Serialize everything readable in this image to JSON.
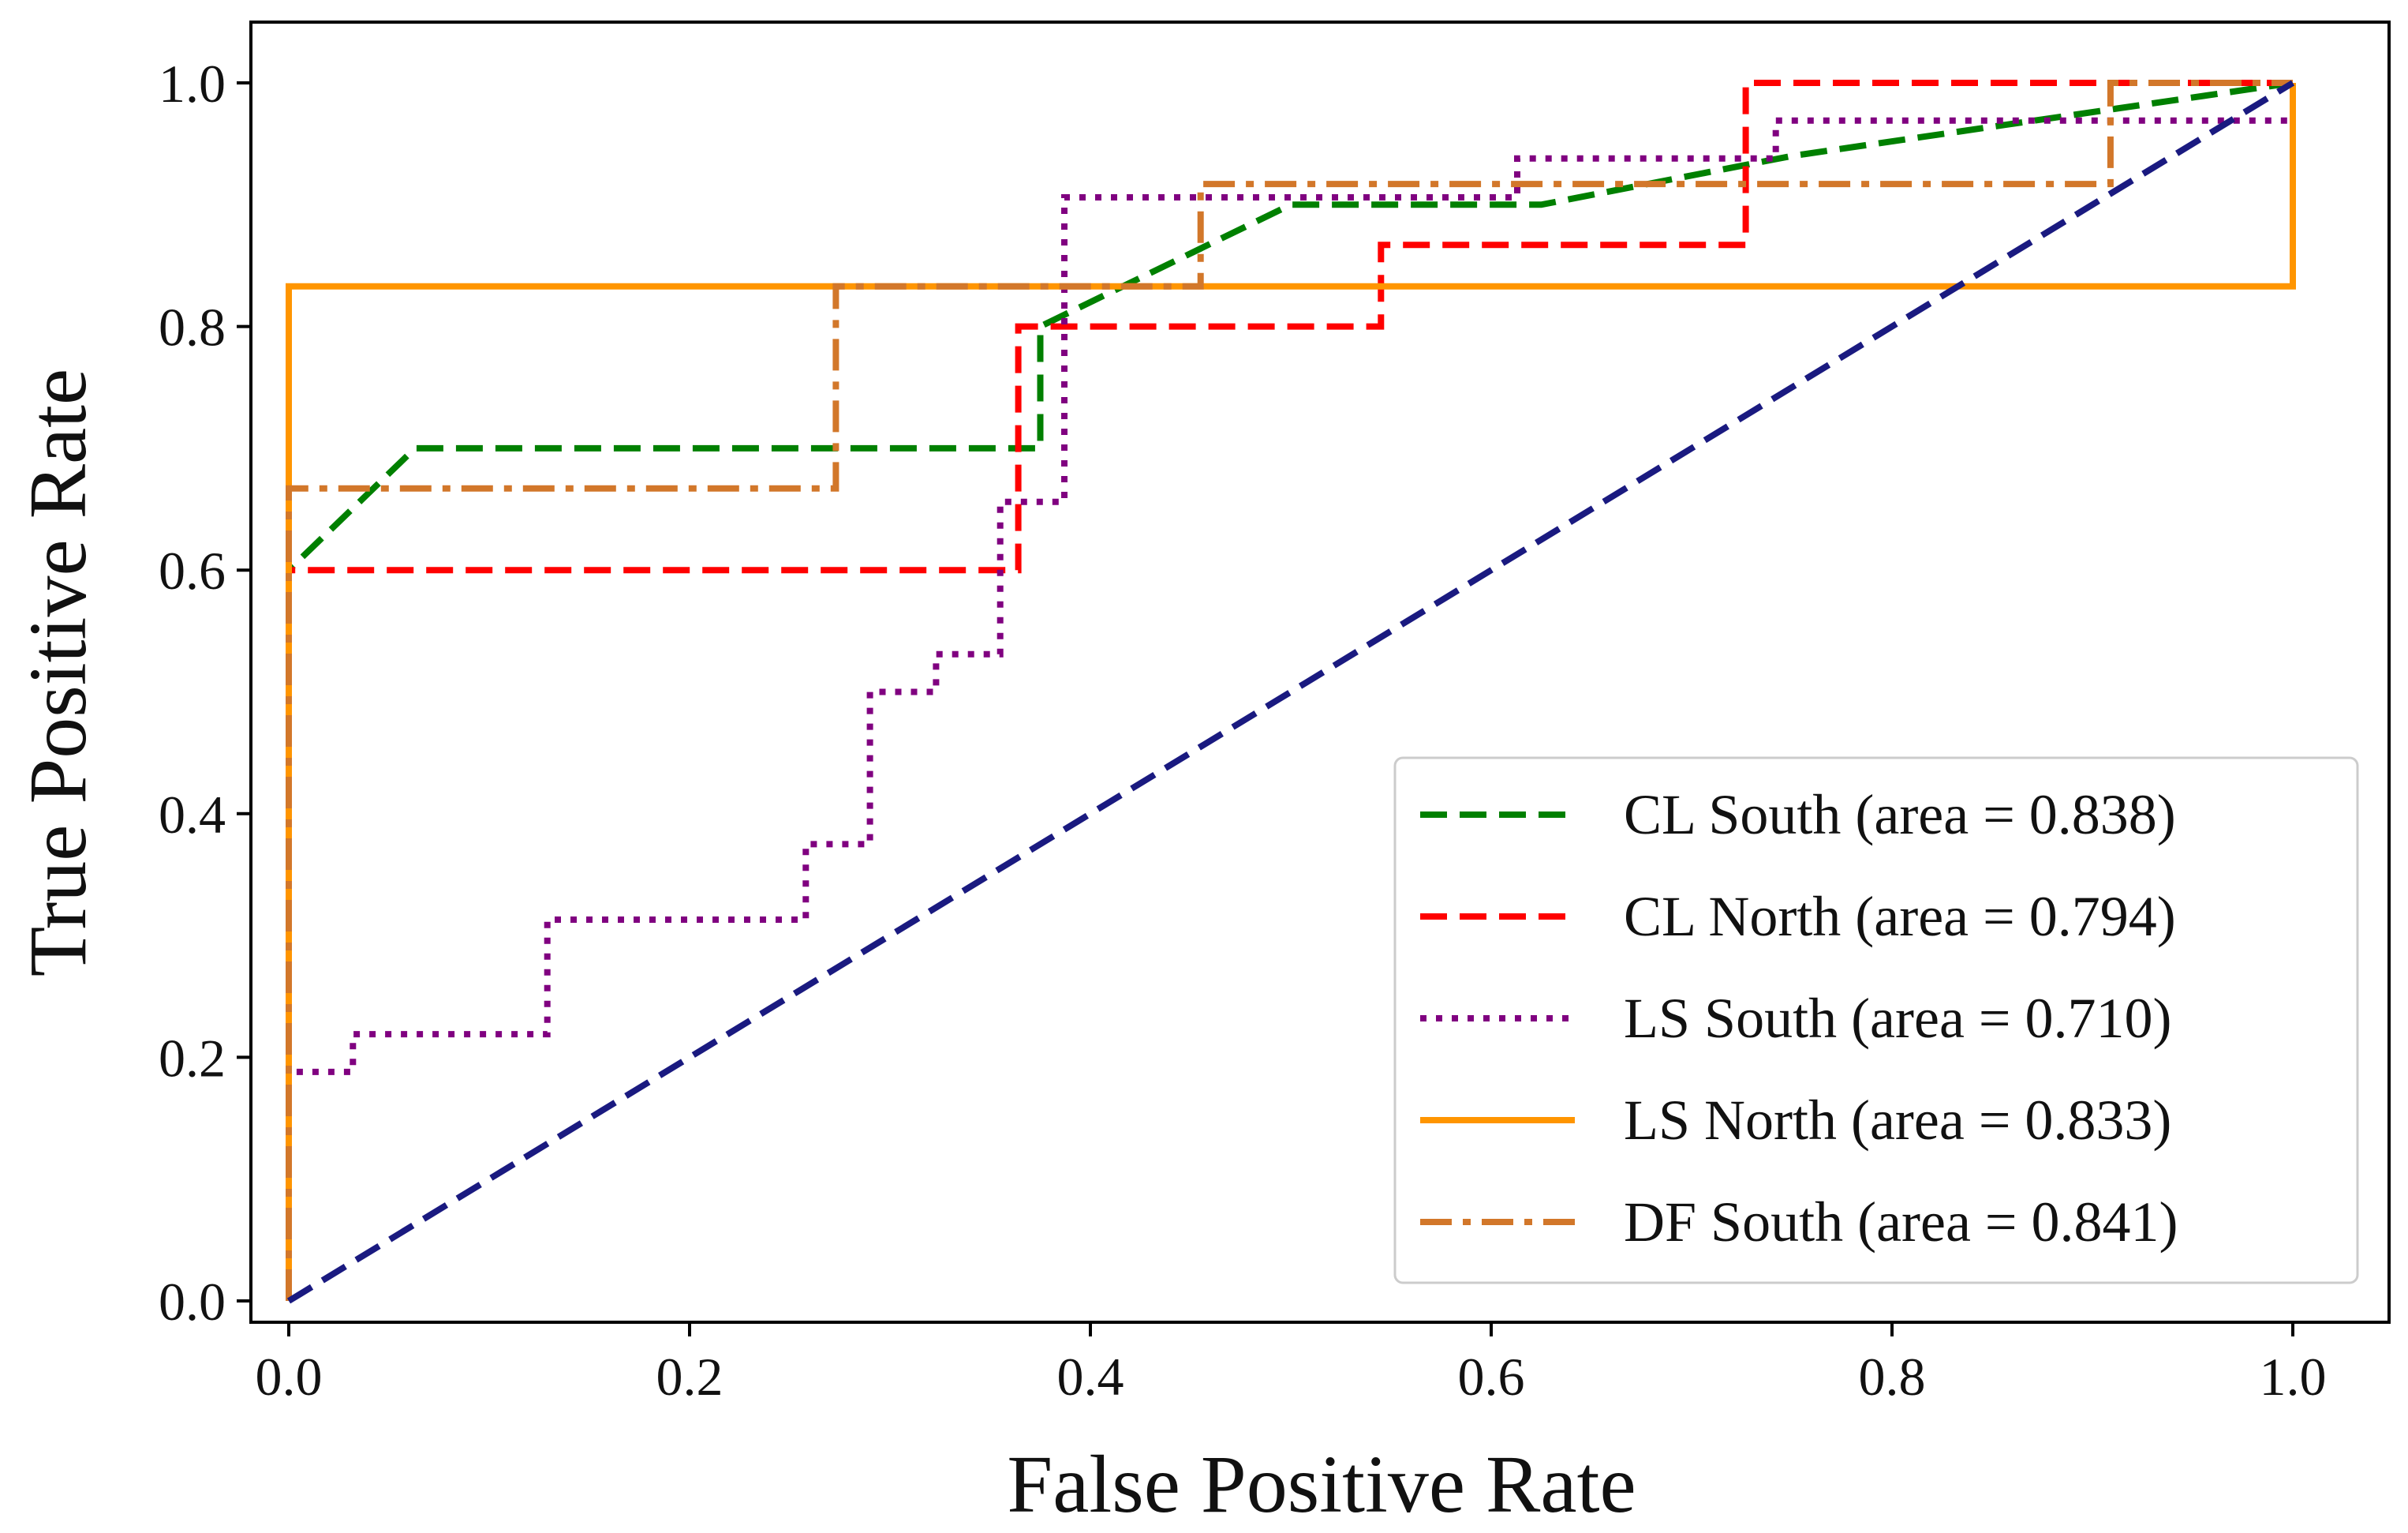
{
  "chart_data": {
    "type": "line",
    "title": "",
    "xlabel": "False Positive Rate",
    "ylabel": "True Positive Rate",
    "xlim": [
      0.0,
      1.0
    ],
    "ylim": [
      0.0,
      1.0
    ],
    "xticks": [
      "0.0",
      "0.2",
      "0.4",
      "0.6",
      "0.8",
      "1.0"
    ],
    "yticks": [
      "0.0",
      "0.2",
      "0.4",
      "0.6",
      "0.8",
      "1.0"
    ],
    "grid": false,
    "legend_position": "lower right",
    "series": [
      {
        "name": "CL South (area = 0.838)",
        "color": "#008000",
        "style": "dashed",
        "x": [
          0.0,
          0.0,
          0.063,
          0.375,
          0.375,
          0.5,
          0.625,
          0.75,
          1.0
        ],
        "y": [
          0.0,
          0.6,
          0.7,
          0.7,
          0.8,
          0.9,
          0.9,
          0.94,
          1.0
        ]
      },
      {
        "name": "CL North (area = 0.794)",
        "color": "#ff0000",
        "style": "dashed",
        "x": [
          0.0,
          0.0,
          0.364,
          0.364,
          0.545,
          0.545,
          0.727,
          0.727,
          1.0
        ],
        "y": [
          0.0,
          0.6,
          0.6,
          0.8,
          0.8,
          0.867,
          0.867,
          1.0,
          1.0
        ]
      },
      {
        "name": "LS South (area = 0.710)",
        "color": "#800080",
        "style": "dotted",
        "x": [
          0.0,
          0.0,
          0.032,
          0.032,
          0.129,
          0.129,
          0.258,
          0.258,
          0.29,
          0.29,
          0.323,
          0.323,
          0.355,
          0.355,
          0.387,
          0.387,
          0.613,
          0.613,
          0.742,
          0.742,
          1.0,
          1.0
        ],
        "y": [
          0.0,
          0.188,
          0.188,
          0.219,
          0.219,
          0.313,
          0.313,
          0.375,
          0.375,
          0.5,
          0.5,
          0.531,
          0.531,
          0.656,
          0.656,
          0.906,
          0.906,
          0.938,
          0.938,
          0.969,
          0.969,
          1.0
        ]
      },
      {
        "name": "LS North (area = 0.833)",
        "color": "#ff9500",
        "style": "solid",
        "x": [
          0.0,
          0.0,
          1.0,
          1.0
        ],
        "y": [
          0.0,
          0.833,
          0.833,
          1.0
        ]
      },
      {
        "name": "DF South (area = 0.841)",
        "color": "#d2772a",
        "style": "dashdot",
        "x": [
          0.0,
          0.0,
          0.273,
          0.273,
          0.455,
          0.455,
          0.909,
          0.909,
          1.0
        ],
        "y": [
          0.0,
          0.667,
          0.667,
          0.833,
          0.833,
          0.917,
          0.917,
          1.0,
          1.0
        ]
      },
      {
        "name": "chance",
        "show_in_legend": false,
        "color": "#1a1a80",
        "style": "dashed",
        "x": [
          0.0,
          1.0
        ],
        "y": [
          0.0,
          1.0
        ]
      }
    ]
  }
}
